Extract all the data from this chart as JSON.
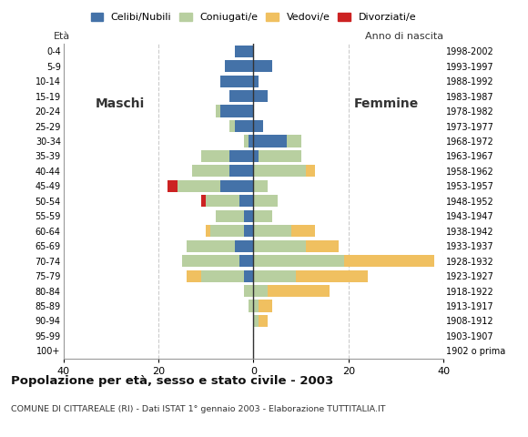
{
  "age_groups": [
    "100+",
    "95-99",
    "90-94",
    "85-89",
    "80-84",
    "75-79",
    "70-74",
    "65-69",
    "60-64",
    "55-59",
    "50-54",
    "45-49",
    "40-44",
    "35-39",
    "30-34",
    "25-29",
    "20-24",
    "15-19",
    "10-14",
    "5-9",
    "0-4"
  ],
  "birth_years": [
    "1902 o prima",
    "1903-1907",
    "1908-1912",
    "1913-1917",
    "1918-1922",
    "1923-1927",
    "1928-1932",
    "1933-1937",
    "1938-1942",
    "1943-1947",
    "1948-1952",
    "1953-1957",
    "1958-1962",
    "1963-1967",
    "1968-1972",
    "1973-1977",
    "1978-1982",
    "1983-1987",
    "1988-1992",
    "1993-1997",
    "1998-2002"
  ],
  "male": {
    "celibi": [
      0,
      0,
      0,
      0,
      0,
      2,
      3,
      4,
      2,
      2,
      3,
      7,
      5,
      5,
      1,
      4,
      7,
      5,
      7,
      6,
      4
    ],
    "coniugati": [
      0,
      0,
      0,
      1,
      2,
      9,
      12,
      10,
      7,
      6,
      7,
      9,
      8,
      6,
      1,
      1,
      1,
      0,
      0,
      0,
      0
    ],
    "vedovi": [
      0,
      0,
      0,
      0,
      0,
      3,
      0,
      0,
      1,
      0,
      0,
      0,
      0,
      0,
      0,
      0,
      0,
      0,
      0,
      0,
      0
    ],
    "divorziati": [
      0,
      0,
      0,
      0,
      0,
      0,
      0,
      0,
      0,
      0,
      1,
      2,
      0,
      0,
      0,
      0,
      0,
      0,
      0,
      0,
      0
    ]
  },
  "female": {
    "nubili": [
      0,
      0,
      0,
      0,
      0,
      0,
      0,
      0,
      0,
      0,
      0,
      0,
      0,
      1,
      7,
      2,
      0,
      3,
      1,
      4,
      0
    ],
    "coniugate": [
      0,
      0,
      1,
      1,
      3,
      9,
      19,
      11,
      8,
      4,
      5,
      3,
      11,
      9,
      3,
      0,
      0,
      0,
      0,
      0,
      0
    ],
    "vedove": [
      0,
      0,
      2,
      3,
      13,
      15,
      19,
      7,
      5,
      0,
      0,
      0,
      2,
      0,
      0,
      0,
      0,
      0,
      0,
      0,
      0
    ],
    "divorziate": [
      0,
      0,
      0,
      0,
      0,
      0,
      0,
      0,
      0,
      0,
      0,
      0,
      0,
      0,
      0,
      0,
      0,
      0,
      0,
      0,
      0
    ]
  },
  "colors": {
    "celibi_nubili": "#4472a8",
    "coniugati": "#b8cfa0",
    "vedovi": "#f0c060",
    "divorziati": "#cc2222"
  },
  "title": "Popolazione per età, sesso e stato civile - 2003",
  "subtitle": "COMUNE DI CITTAREALE (RI) - Dati ISTAT 1° gennaio 2003 - Elaborazione TUTTITALIA.IT",
  "xlabel_left": "Maschi",
  "xlabel_right": "Femmine",
  "ylabel_left": "Età",
  "ylabel_right": "Anno di nascita",
  "xlim": 40,
  "background_color": "#ffffff",
  "grid_color": "#cccccc"
}
